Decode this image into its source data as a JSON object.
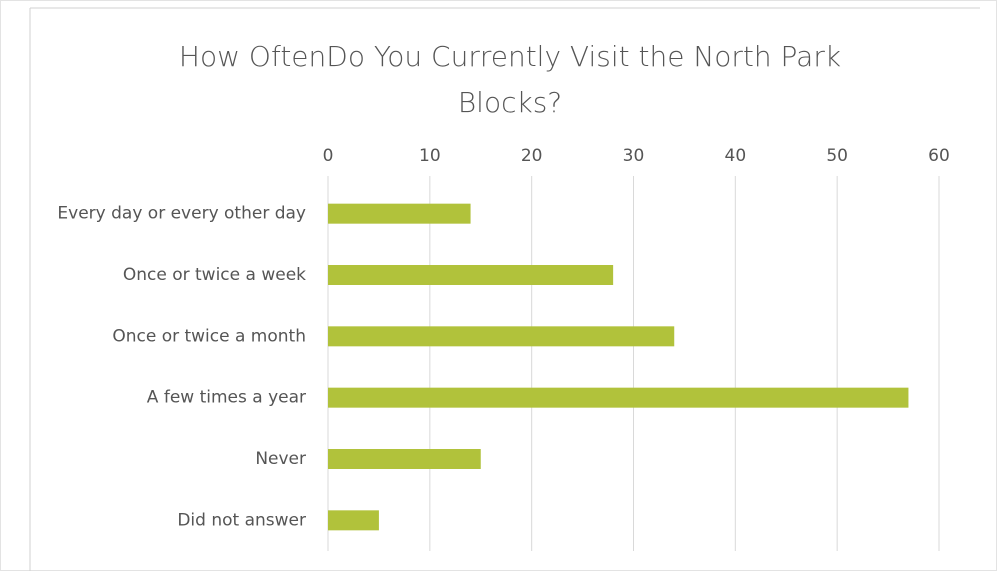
{
  "chart_data": {
    "type": "bar",
    "orientation": "horizontal",
    "title": "How OftenDo You Currently Visit the North Park Blocks?",
    "categories": [
      "Every day or every other day",
      "Once or twice a week",
      "Once or twice a month",
      "A few times a year",
      "Never",
      "Did not answer"
    ],
    "values": [
      14,
      28,
      34,
      57,
      15,
      5
    ],
    "color": "#b1c23b",
    "xlim": [
      0,
      60
    ],
    "xticks": [
      0,
      10,
      20,
      30,
      40,
      50,
      60
    ],
    "grid": true
  }
}
